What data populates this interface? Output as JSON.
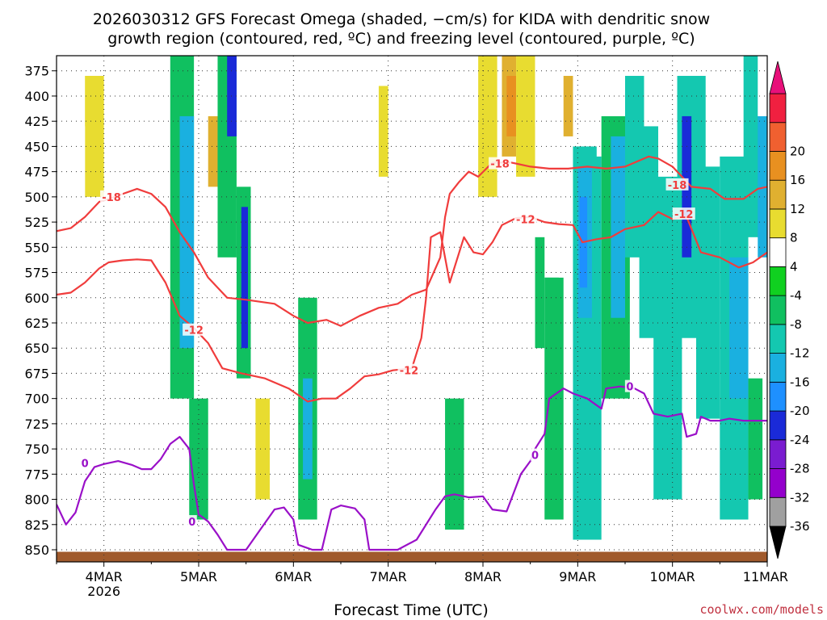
{
  "chart_data": {
    "type": "heatmap",
    "title_lines": [
      "2026030312 GFS Forecast Omega (shaded, −cm/s) for KIDA with dendritic snow",
      "growth region (contoured, red, ºC) and freezing level (contoured, purple, ºC)"
    ],
    "xlabel": "Forecast Time (UTC)",
    "credit": "coolwx.com/models",
    "y_axis": {
      "unit": "hPa",
      "ylim": [
        360,
        862
      ],
      "ticks": [
        375,
        400,
        425,
        450,
        475,
        500,
        525,
        550,
        575,
        600,
        625,
        650,
        675,
        700,
        725,
        750,
        775,
        800,
        825,
        850
      ],
      "tick_labels": [
        "375",
        "400",
        "425",
        "450",
        "475",
        "500",
        "525",
        "550",
        "575",
        "600",
        "625",
        "650",
        "675",
        "700",
        "725",
        "750",
        "775",
        "800",
        "825",
        "850"
      ]
    },
    "x_axis": {
      "unit": "days since 2026-03-03 12UTC",
      "xlim": [
        0,
        7.5
      ],
      "ticks": [
        0.5,
        1.5,
        2.5,
        3.5,
        4.5,
        5.5,
        6.5,
        7.5
      ],
      "tick_labels": [
        "4MAR",
        "5MAR",
        "6MAR",
        "7MAR",
        "8MAR",
        "9MAR",
        "10MAR",
        "11MAR"
      ],
      "year_label": "2026"
    },
    "colorbar": {
      "levels": [
        -36,
        -32,
        -28,
        -24,
        -20,
        -16,
        -12,
        -8,
        -4,
        4,
        8,
        12,
        16,
        20
      ],
      "level_labels": [
        "-36",
        "-32",
        "-28",
        "-24",
        "-20",
        "-16",
        "-12",
        "-8",
        "-4",
        "4",
        "8",
        "12",
        "16",
        "20"
      ],
      "colors": [
        "#a0a0a0",
        "#9400cc",
        "#7a1cd0",
        "#1a2ad8",
        "#1e90ff",
        "#1ab0e0",
        "#14c8b0",
        "#10c060",
        "#10d020",
        "#ffffff",
        "#e8dc30",
        "#e0b030",
        "#e89020",
        "#f06030",
        "#f02040"
      ],
      "under_color": "#000000",
      "over_color": "#e8107a"
    },
    "omega_cells": [
      {
        "t0": 0.0,
        "t1": 0.55,
        "p0": 360,
        "p1": 520,
        "v": 6
      },
      {
        "t0": 0.3,
        "t1": 0.5,
        "p0": 380,
        "p1": 500,
        "v": 10
      },
      {
        "t0": 0.1,
        "t1": 0.3,
        "p0": 430,
        "p1": 590,
        "v": 5
      },
      {
        "t0": 0.15,
        "t1": 0.3,
        "p0": 620,
        "p1": 710,
        "v": 5
      },
      {
        "t0": 1.15,
        "t1": 1.25,
        "p0": 360,
        "p1": 470,
        "v": 6
      },
      {
        "t0": 1.2,
        "t1": 1.45,
        "p0": 360,
        "p1": 700,
        "v": -6
      },
      {
        "t0": 1.3,
        "t1": 1.45,
        "p0": 420,
        "p1": 650,
        "v": -14
      },
      {
        "t0": 1.5,
        "t1": 1.7,
        "p0": 360,
        "p1": 520,
        "v": 6
      },
      {
        "t0": 1.6,
        "t1": 1.75,
        "p0": 420,
        "p1": 490,
        "v": 14
      },
      {
        "t0": 1.55,
        "t1": 1.75,
        "p0": 500,
        "p1": 680,
        "v": 5
      },
      {
        "t0": 1.7,
        "t1": 1.9,
        "p0": 360,
        "p1": 560,
        "v": -6
      },
      {
        "t0": 1.8,
        "t1": 1.9,
        "p0": 360,
        "p1": 440,
        "v": -22
      },
      {
        "t0": 1.9,
        "t1": 2.05,
        "p0": 490,
        "p1": 680,
        "v": -8
      },
      {
        "t0": 1.95,
        "t1": 2.02,
        "p0": 510,
        "p1": 650,
        "v": -24
      },
      {
        "t0": 2.05,
        "t1": 2.3,
        "p0": 480,
        "p1": 720,
        "v": 5
      },
      {
        "t0": 2.1,
        "t1": 2.25,
        "p0": 700,
        "p1": 800,
        "v": 9
      },
      {
        "t0": 1.4,
        "t1": 1.6,
        "p0": 700,
        "p1": 820,
        "v": -8
      },
      {
        "t0": 2.35,
        "t1": 2.6,
        "p0": 560,
        "p1": 720,
        "v": 5
      },
      {
        "t0": 2.55,
        "t1": 2.75,
        "p0": 600,
        "p1": 820,
        "v": -6
      },
      {
        "t0": 2.6,
        "t1": 2.7,
        "p0": 680,
        "p1": 780,
        "v": -14
      },
      {
        "t0": 2.8,
        "t1": 3.0,
        "p0": 460,
        "p1": 600,
        "v": 5
      },
      {
        "t0": 2.95,
        "t1": 3.1,
        "p0": 640,
        "p1": 780,
        "v": 6
      },
      {
        "t0": 3.2,
        "t1": 3.35,
        "p0": 360,
        "p1": 480,
        "v": 6
      },
      {
        "t0": 3.35,
        "t1": 3.55,
        "p0": 360,
        "p1": 500,
        "v": 6
      },
      {
        "t0": 3.4,
        "t1": 3.5,
        "p0": 390,
        "p1": 480,
        "v": 10
      },
      {
        "t0": 3.4,
        "t1": 3.6,
        "p0": 720,
        "p1": 820,
        "v": 6
      },
      {
        "t0": 3.55,
        "t1": 3.75,
        "p0": 380,
        "p1": 520,
        "v": 7
      },
      {
        "t0": 4.15,
        "t1": 4.3,
        "p0": 400,
        "p1": 560,
        "v": 5
      },
      {
        "t0": 4.1,
        "t1": 4.3,
        "p0": 700,
        "p1": 830,
        "v": -6
      },
      {
        "t0": 4.35,
        "t1": 4.5,
        "p0": 560,
        "p1": 660,
        "v": 5
      },
      {
        "t0": 4.45,
        "t1": 4.65,
        "p0": 360,
        "p1": 500,
        "v": 9
      },
      {
        "t0": 4.7,
        "t1": 4.85,
        "p0": 360,
        "p1": 460,
        "v": 14
      },
      {
        "t0": 4.75,
        "t1": 4.85,
        "p0": 380,
        "p1": 440,
        "v": 18
      },
      {
        "t0": 4.85,
        "t1": 5.05,
        "p0": 360,
        "p1": 480,
        "v": 9
      },
      {
        "t0": 5.05,
        "t1": 5.2,
        "p0": 360,
        "p1": 430,
        "v": 6
      },
      {
        "t0": 5.05,
        "t1": 5.15,
        "p0": 540,
        "p1": 650,
        "v": -6
      },
      {
        "t0": 5.15,
        "t1": 5.35,
        "p0": 580,
        "p1": 820,
        "v": -7
      },
      {
        "t0": 5.3,
        "t1": 5.5,
        "p0": 380,
        "p1": 580,
        "v": 7
      },
      {
        "t0": 5.35,
        "t1": 5.45,
        "p0": 380,
        "p1": 440,
        "v": 14
      },
      {
        "t0": 5.45,
        "t1": 5.75,
        "p0": 450,
        "p1": 840,
        "v": -9
      },
      {
        "t0": 5.5,
        "t1": 5.65,
        "p0": 470,
        "p1": 620,
        "v": -14
      },
      {
        "t0": 5.52,
        "t1": 5.6,
        "p0": 500,
        "p1": 590,
        "v": -18
      },
      {
        "t0": 5.7,
        "t1": 5.95,
        "p0": 380,
        "p1": 460,
        "v": 6
      },
      {
        "t0": 5.75,
        "t1": 6.05,
        "p0": 420,
        "p1": 700,
        "v": -8
      },
      {
        "t0": 5.85,
        "t1": 6.0,
        "p0": 440,
        "p1": 620,
        "v": -14
      },
      {
        "t0": 6.0,
        "t1": 6.2,
        "p0": 380,
        "p1": 560,
        "v": -10
      },
      {
        "t0": 6.15,
        "t1": 6.35,
        "p0": 430,
        "p1": 640,
        "v": -12
      },
      {
        "t0": 6.35,
        "t1": 6.55,
        "p0": 360,
        "p1": 460,
        "v": 6
      },
      {
        "t0": 6.3,
        "t1": 6.6,
        "p0": 480,
        "p1": 800,
        "v": -10
      },
      {
        "t0": 6.55,
        "t1": 6.75,
        "p0": 380,
        "p1": 640,
        "v": -12
      },
      {
        "t0": 6.6,
        "t1": 6.7,
        "p0": 420,
        "p1": 560,
        "v": -22
      },
      {
        "t0": 6.75,
        "t1": 7.0,
        "p0": 380,
        "p1": 720,
        "v": -9
      },
      {
        "t0": 6.85,
        "t1": 7.05,
        "p0": 370,
        "p1": 470,
        "v": 6
      },
      {
        "t0": 7.0,
        "t1": 7.3,
        "p0": 460,
        "p1": 820,
        "v": -10
      },
      {
        "t0": 7.1,
        "t1": 7.3,
        "p0": 560,
        "p1": 700,
        "v": -14
      },
      {
        "t0": 7.25,
        "t1": 7.45,
        "p0": 360,
        "p1": 540,
        "v": -10
      },
      {
        "t0": 7.3,
        "t1": 7.45,
        "p0": 680,
        "p1": 800,
        "v": -8
      },
      {
        "t0": 7.4,
        "t1": 7.5,
        "p0": 400,
        "p1": 560,
        "v": -16
      },
      {
        "t0": 7.4,
        "t1": 7.5,
        "p0": 360,
        "p1": 420,
        "v": 6
      }
    ],
    "series": [
      {
        "name": "-18 C isotherm (upper)",
        "color": "#f03c3c",
        "label": "-18",
        "label_at": [
          [
            0.58,
            500
          ],
          [
            4.68,
            467
          ],
          [
            6.55,
            488
          ]
        ],
        "points": [
          [
            0.0,
            534
          ],
          [
            0.15,
            531
          ],
          [
            0.3,
            520
          ],
          [
            0.45,
            505
          ],
          [
            0.55,
            502
          ],
          [
            0.7,
            497
          ],
          [
            0.85,
            492
          ],
          [
            1.0,
            497
          ],
          [
            1.15,
            510
          ],
          [
            1.3,
            535
          ],
          [
            1.45,
            555
          ],
          [
            1.6,
            580
          ],
          [
            1.8,
            600
          ],
          [
            2.0,
            602
          ],
          [
            2.3,
            606
          ],
          [
            2.5,
            618
          ],
          [
            2.65,
            625
          ],
          [
            2.85,
            622
          ],
          [
            3.0,
            628
          ],
          [
            3.2,
            618
          ],
          [
            3.4,
            610
          ],
          [
            3.6,
            606
          ],
          [
            3.75,
            597
          ],
          [
            3.9,
            592
          ],
          [
            4.05,
            560
          ],
          [
            4.1,
            520
          ],
          [
            4.15,
            497
          ],
          [
            4.25,
            485
          ],
          [
            4.35,
            475
          ],
          [
            4.45,
            480
          ],
          [
            4.6,
            466
          ],
          [
            4.8,
            466
          ],
          [
            5.0,
            470
          ],
          [
            5.2,
            472
          ],
          [
            5.4,
            472
          ],
          [
            5.6,
            470
          ],
          [
            5.8,
            472
          ],
          [
            6.0,
            470
          ],
          [
            6.1,
            466
          ],
          [
            6.25,
            460
          ],
          [
            6.35,
            462
          ],
          [
            6.5,
            470
          ],
          [
            6.7,
            490
          ],
          [
            6.9,
            492
          ],
          [
            7.05,
            502
          ],
          [
            7.25,
            502
          ],
          [
            7.4,
            492
          ],
          [
            7.5,
            490
          ]
        ]
      },
      {
        "name": "-12 C isotherm (lower)",
        "color": "#f03c3c",
        "label": "-12",
        "label_at": [
          [
            1.45,
            632
          ],
          [
            3.72,
            672
          ],
          [
            4.95,
            522
          ],
          [
            6.62,
            517
          ]
        ],
        "points": [
          [
            0.0,
            597
          ],
          [
            0.15,
            595
          ],
          [
            0.3,
            585
          ],
          [
            0.45,
            571
          ],
          [
            0.55,
            565
          ],
          [
            0.7,
            563
          ],
          [
            0.85,
            562
          ],
          [
            1.0,
            563
          ],
          [
            1.15,
            585
          ],
          [
            1.3,
            618
          ],
          [
            1.45,
            630
          ],
          [
            1.6,
            645
          ],
          [
            1.75,
            670
          ],
          [
            1.95,
            675
          ],
          [
            2.2,
            680
          ],
          [
            2.45,
            690
          ],
          [
            2.65,
            703
          ],
          [
            2.8,
            700
          ],
          [
            2.95,
            700
          ],
          [
            3.1,
            690
          ],
          [
            3.25,
            678
          ],
          [
            3.4,
            676
          ],
          [
            3.55,
            672
          ],
          [
            3.75,
            670
          ],
          [
            3.85,
            640
          ],
          [
            3.9,
            600
          ],
          [
            3.95,
            540
          ],
          [
            4.05,
            535
          ],
          [
            4.15,
            585
          ],
          [
            4.3,
            540
          ],
          [
            4.4,
            555
          ],
          [
            4.5,
            557
          ],
          [
            4.6,
            545
          ],
          [
            4.7,
            528
          ],
          [
            4.85,
            521
          ],
          [
            5.0,
            520
          ],
          [
            5.15,
            525
          ],
          [
            5.3,
            527
          ],
          [
            5.45,
            528
          ],
          [
            5.55,
            545
          ],
          [
            5.7,
            542
          ],
          [
            5.85,
            540
          ],
          [
            6.0,
            532
          ],
          [
            6.2,
            528
          ],
          [
            6.35,
            515
          ],
          [
            6.5,
            522
          ],
          [
            6.65,
            520
          ],
          [
            6.8,
            555
          ],
          [
            7.0,
            560
          ],
          [
            7.2,
            570
          ],
          [
            7.35,
            565
          ],
          [
            7.5,
            555
          ]
        ]
      },
      {
        "name": "0 C freezing level",
        "color": "#9a10c8",
        "label": "0",
        "label_at": [
          [
            0.3,
            764
          ],
          [
            1.43,
            822
          ],
          [
            5.05,
            756
          ],
          [
            6.05,
            688
          ]
        ],
        "points": [
          [
            0.0,
            805
          ],
          [
            0.1,
            825
          ],
          [
            0.2,
            813
          ],
          [
            0.3,
            782
          ],
          [
            0.4,
            768
          ],
          [
            0.5,
            765
          ],
          [
            0.65,
            762
          ],
          [
            0.8,
            766
          ],
          [
            0.9,
            770
          ],
          [
            1.0,
            770
          ],
          [
            1.1,
            760
          ],
          [
            1.2,
            745
          ],
          [
            1.3,
            738
          ],
          [
            1.4,
            750
          ],
          [
            1.45,
            785
          ],
          [
            1.5,
            815
          ],
          [
            1.6,
            822
          ],
          [
            1.7,
            835
          ],
          [
            1.8,
            850
          ],
          [
            2.0,
            850
          ],
          [
            2.15,
            830
          ],
          [
            2.3,
            810
          ],
          [
            2.4,
            808
          ],
          [
            2.5,
            820
          ],
          [
            2.55,
            845
          ],
          [
            2.7,
            850
          ],
          [
            2.8,
            850
          ],
          [
            2.9,
            810
          ],
          [
            3.0,
            806
          ],
          [
            3.15,
            809
          ],
          [
            3.25,
            820
          ],
          [
            3.3,
            850
          ],
          [
            3.6,
            850
          ],
          [
            3.8,
            840
          ],
          [
            4.0,
            810
          ],
          [
            4.1,
            797
          ],
          [
            4.2,
            795
          ],
          [
            4.35,
            798
          ],
          [
            4.5,
            797
          ],
          [
            4.6,
            810
          ],
          [
            4.75,
            812
          ],
          [
            4.9,
            775
          ],
          [
            5.0,
            762
          ],
          [
            5.05,
            750
          ],
          [
            5.15,
            735
          ],
          [
            5.2,
            700
          ],
          [
            5.35,
            690
          ],
          [
            5.45,
            695
          ],
          [
            5.6,
            700
          ],
          [
            5.75,
            710
          ],
          [
            5.8,
            690
          ],
          [
            5.95,
            688
          ],
          [
            6.1,
            690
          ],
          [
            6.2,
            695
          ],
          [
            6.3,
            715
          ],
          [
            6.45,
            718
          ],
          [
            6.6,
            715
          ],
          [
            6.65,
            738
          ],
          [
            6.75,
            735
          ],
          [
            6.8,
            718
          ],
          [
            6.9,
            722
          ],
          [
            7.0,
            722
          ],
          [
            7.1,
            720
          ],
          [
            7.25,
            722
          ],
          [
            7.4,
            722
          ],
          [
            7.5,
            722
          ]
        ]
      }
    ],
    "terrain": {
      "color": "#a05a2c",
      "top_hPa": 852
    }
  }
}
